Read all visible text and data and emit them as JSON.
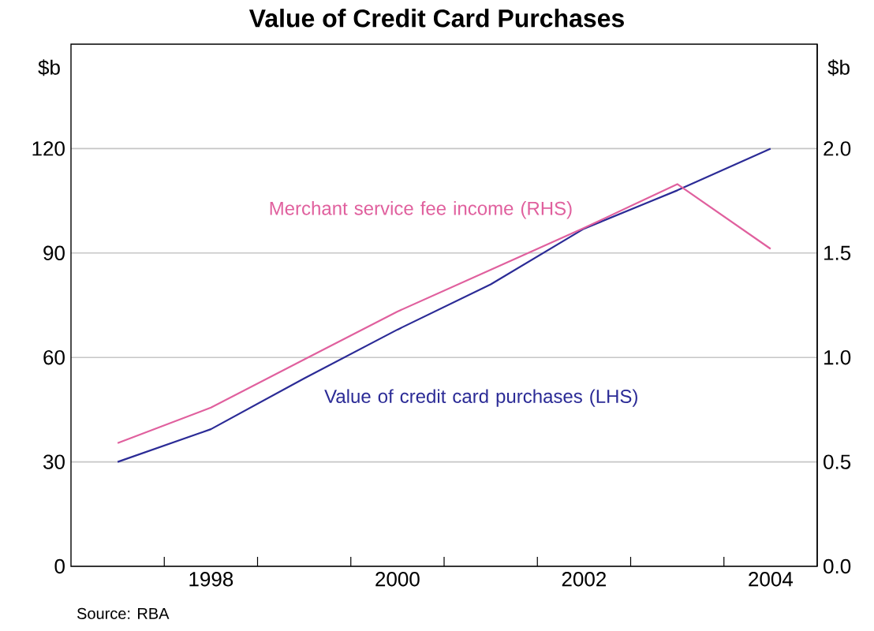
{
  "chart_data": {
    "type": "line",
    "title": "Value of Credit Card Purchases",
    "ylabel": "$b",
    "y2label": "$b",
    "x": [
      1997,
      1998,
      1999,
      2000,
      2001,
      2002,
      2003,
      2004
    ],
    "series": [
      {
        "name": "Merchant service fee income (RHS)",
        "color": "#e0609e",
        "axis": "y2",
        "values": [
          0.59,
          0.76,
          0.99,
          1.22,
          1.42,
          1.62,
          1.83,
          1.52
        ]
      },
      {
        "name": "Value of credit card purchases (LHS)",
        "color": "#2b2b96",
        "values": [
          30,
          39.4,
          54,
          68,
          81,
          97,
          108,
          120
        ]
      }
    ],
    "xlim": [
      1996.5,
      2004.5
    ],
    "xticks": [
      {
        "value": 1997.5,
        "label": null
      },
      1998,
      {
        "value": 1998.5,
        "label": null
      },
      {
        "value": 1999.5,
        "label": null
      },
      2000,
      {
        "value": 2000.5,
        "label": null
      },
      {
        "value": 2001.5,
        "label": null
      },
      2002,
      {
        "value": 2002.5,
        "label": null
      },
      {
        "value": 2003.5,
        "label": null
      },
      2004
    ],
    "ylim": [
      0,
      150
    ],
    "yticks": [
      0,
      30,
      60,
      90,
      120
    ],
    "y2lim": [
      0,
      2.5
    ],
    "y2ticks": [
      {
        "value": 0,
        "label": "0.0"
      },
      {
        "value": 0.5,
        "label": "0.5"
      },
      {
        "value": 1,
        "label": "1.0"
      },
      {
        "value": 1.5,
        "label": "1.5"
      },
      {
        "value": 2,
        "label": "2.0"
      }
    ],
    "grid": "y",
    "annotations": [
      "Source: RBA"
    ]
  }
}
